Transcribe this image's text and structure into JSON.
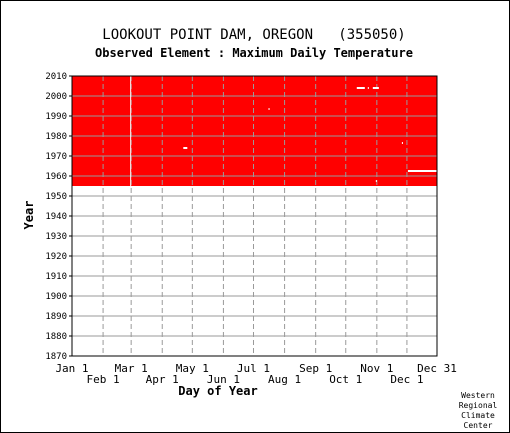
{
  "chart_data": {
    "type": "heatmap",
    "title": "LOOKOUT POINT DAM, OREGON   (355050)",
    "subtitle": "Observed Element : Maximum Daily Temperature",
    "xlabel": "Day of Year",
    "ylabel": "Year",
    "xlim": [
      1,
      365
    ],
    "ylim": [
      1870,
      2010
    ],
    "y_ticks": [
      1870,
      1880,
      1890,
      1900,
      1910,
      1920,
      1930,
      1940,
      1950,
      1960,
      1970,
      1980,
      1990,
      2000,
      2010
    ],
    "x_ticks_upper": [
      {
        "label": "Jan 1",
        "day": 1
      },
      {
        "label": "Mar 1",
        "day": 60
      },
      {
        "label": "May 1",
        "day": 121
      },
      {
        "label": "Jul 1",
        "day": 182
      },
      {
        "label": "Sep 1",
        "day": 244
      },
      {
        "label": "Nov 1",
        "day": 305
      },
      {
        "label": "Dec 31",
        "day": 365
      }
    ],
    "x_ticks_lower": [
      {
        "label": "Feb 1",
        "day": 32
      },
      {
        "label": "Apr 1",
        "day": 91
      },
      {
        "label": "Jun 1",
        "day": 152
      },
      {
        "label": "Aug 1",
        "day": 213
      },
      {
        "label": "Oct 1",
        "day": 274
      },
      {
        "label": "Dec 1",
        "day": 335
      }
    ],
    "grid": true,
    "data_color": "#ff0000",
    "coverage": {
      "start_year": 1955,
      "end_year": 2010,
      "start_day": 1,
      "end_day": 365
    },
    "missing_segments": [
      {
        "day_start": 59,
        "day_end": 60,
        "year_start": 1955,
        "year_end": 2010
      },
      {
        "day_start": 112,
        "day_end": 116,
        "year_start": 1973.5,
        "year_end": 1974.5
      },
      {
        "day_start": 197,
        "day_end": 198,
        "year_start": 1993,
        "year_end": 1994
      },
      {
        "day_start": 285,
        "day_end": 293,
        "year_start": 2003.5,
        "year_end": 2004.5
      },
      {
        "day_start": 296,
        "day_end": 297,
        "year_start": 2003.5,
        "year_end": 2004.5
      },
      {
        "day_start": 301,
        "day_end": 307,
        "year_start": 2003.5,
        "year_end": 2004.5
      },
      {
        "day_start": 336,
        "day_end": 365,
        "year_start": 1962,
        "year_end": 1963
      },
      {
        "day_start": 330,
        "day_end": 331,
        "year_start": 1976,
        "year_end": 1977
      },
      {
        "day_start": 304,
        "day_end": 305,
        "year_start": 1957,
        "year_end": 1958
      }
    ]
  },
  "footer": {
    "credit": [
      "Western",
      "Regional",
      "Climate",
      "Center"
    ]
  }
}
